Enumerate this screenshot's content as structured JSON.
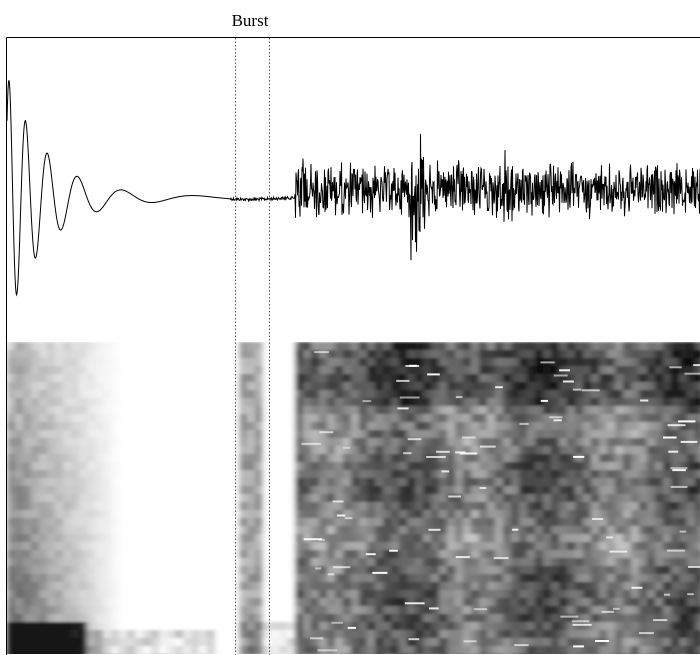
{
  "figure": {
    "burst_label": "Burst",
    "colors": {
      "background": "#ffffff",
      "waveform": "#000000",
      "marker_line": "#555555",
      "frame": "#000000"
    },
    "panels": [
      "waveform",
      "spectrogram"
    ]
  }
}
